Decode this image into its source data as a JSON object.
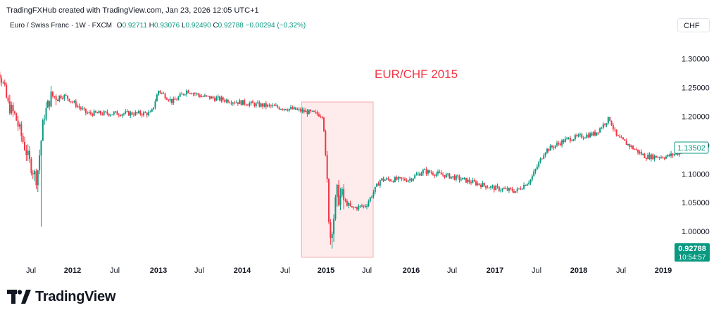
{
  "header": {
    "attribution": "TradingFXHub created with TradingView.com, Jan 23, 2026 12:05 UTC+1"
  },
  "symbol": {
    "name": "Euro / Swiss Franc · 1W · FXCM",
    "open_label": "O",
    "open": "0.92711",
    "high_label": "H",
    "high": "0.93076",
    "low_label": "L",
    "low": "0.92490",
    "close_label": "C",
    "close": "0.92788",
    "change": "−0.00294 (−0.32%)"
  },
  "currency": "CHF",
  "price_tags": {
    "current_value": "1.13502",
    "last_value": "0.92788",
    "countdown": "10:54:57"
  },
  "annotation": {
    "text": "EUR/CHF 2015"
  },
  "brand": {
    "name": "TradingView",
    "logo": "tradingview-logo-icon"
  },
  "colors": {
    "up": "#089981",
    "down": "#f23645",
    "annotation": "#f23645",
    "highlight_fill": "#fde4e6",
    "highlight_stroke": "#f7a9b0",
    "axis_text": "#131722"
  },
  "chart_data": {
    "type": "candlestick",
    "y_scale": "price",
    "ylim": [
      0.95,
      1.335
    ],
    "y_ticks": [
      "1.30000",
      "1.25000",
      "1.20000",
      "1.15000",
      "1.10000",
      "1.05000",
      "1.00000"
    ],
    "x_ticks": [
      "Jul",
      "2012",
      "Jul",
      "2013",
      "Jul",
      "2014",
      "Jul",
      "2015",
      "Jul",
      "2016",
      "Jul",
      "2017",
      "Jul",
      "2018",
      "Jul",
      "2019"
    ],
    "highlight_region": {
      "from": "2014-09",
      "to": "2015-07",
      "low": 0.955,
      "high": 1.225
    },
    "keyframes": [
      {
        "date": "2011-01",
        "price": 1.28
      },
      {
        "date": "2011-02",
        "price": 1.305
      },
      {
        "date": "2011-03",
        "price": 1.27
      },
      {
        "date": "2011-04",
        "price": 1.22
      },
      {
        "date": "2011-05",
        "price": 1.2
      },
      {
        "date": "2011-06",
        "price": 1.16
      },
      {
        "date": "2011-07",
        "price": 1.12
      },
      {
        "date": "2011-08",
        "price": 1.09
      },
      {
        "date": "2011-09",
        "price": 1.2
      },
      {
        "date": "2011-10",
        "price": 1.235
      },
      {
        "date": "2011-12",
        "price": 1.235
      },
      {
        "date": "2012-03",
        "price": 1.205
      },
      {
        "date": "2012-12",
        "price": 1.205
      },
      {
        "date": "2013-01",
        "price": 1.245
      },
      {
        "date": "2013-03",
        "price": 1.225
      },
      {
        "date": "2013-05",
        "price": 1.245
      },
      {
        "date": "2013-07",
        "price": 1.235
      },
      {
        "date": "2013-12",
        "price": 1.225
      },
      {
        "date": "2014-03",
        "price": 1.22
      },
      {
        "date": "2014-08",
        "price": 1.212
      },
      {
        "date": "2014-12",
        "price": 1.202
      },
      {
        "date": "2015-01",
        "price": 0.99
      },
      {
        "date": "2015-02",
        "price": 1.065
      },
      {
        "date": "2015-04",
        "price": 1.04
      },
      {
        "date": "2015-06",
        "price": 1.045
      },
      {
        "date": "2015-08",
        "price": 1.09
      },
      {
        "date": "2015-12",
        "price": 1.09
      },
      {
        "date": "2016-02",
        "price": 1.105
      },
      {
        "date": "2016-06",
        "price": 1.095
      },
      {
        "date": "2016-12",
        "price": 1.075
      },
      {
        "date": "2017-03",
        "price": 1.07
      },
      {
        "date": "2017-05",
        "price": 1.09
      },
      {
        "date": "2017-07",
        "price": 1.14
      },
      {
        "date": "2017-10",
        "price": 1.16
      },
      {
        "date": "2018-02",
        "price": 1.17
      },
      {
        "date": "2018-04",
        "price": 1.197
      },
      {
        "date": "2018-05",
        "price": 1.165
      },
      {
        "date": "2018-09",
        "price": 1.13
      },
      {
        "date": "2018-12",
        "price": 1.13
      },
      {
        "date": "2019-02",
        "price": 1.138
      }
    ]
  }
}
